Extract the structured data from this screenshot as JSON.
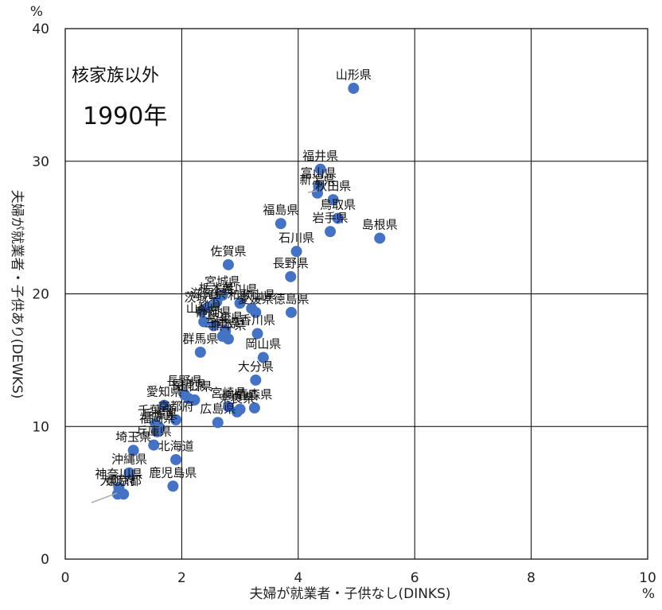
{
  "chart_data": {
    "type": "scatter",
    "title": "核家族以外",
    "subtitle": "1990年",
    "xlabel": "夫婦が就業者・子供なし(DINKS)",
    "ylabel": "夫婦が就業者・子供あり(DEWKS)",
    "x_unit": "%",
    "y_unit": "%",
    "xlim": [
      0,
      10
    ],
    "ylim": [
      0,
      40
    ],
    "x_ticks": [
      "0",
      "2",
      "4",
      "6",
      "8",
      "10"
    ],
    "y_ticks": [
      "0",
      "10",
      "20",
      "30",
      "40"
    ],
    "grid": true,
    "marker_color": "#4472c4",
    "points": [
      {
        "x": 4.95,
        "y": 35.5,
        "label": "山形県"
      },
      {
        "x": 4.38,
        "y": 29.4,
        "label": "福井県"
      },
      {
        "x": 4.35,
        "y": 28.1,
        "label": "富山県"
      },
      {
        "x": 4.33,
        "y": 27.6,
        "label": "新潟県"
      },
      {
        "x": 4.6,
        "y": 27.1,
        "label": "秋田県"
      },
      {
        "x": 4.68,
        "y": 25.7,
        "label": "鳥取県"
      },
      {
        "x": 3.7,
        "y": 25.3,
        "label": "福島県"
      },
      {
        "x": 4.55,
        "y": 24.7,
        "label": "岩手県"
      },
      {
        "x": 5.4,
        "y": 24.2,
        "label": "島根県"
      },
      {
        "x": 3.97,
        "y": 23.2,
        "label": "石川県"
      },
      {
        "x": 2.8,
        "y": 22.2,
        "label": "佐賀県"
      },
      {
        "x": 3.87,
        "y": 21.3,
        "label": "長野県"
      },
      {
        "x": 2.7,
        "y": 19.9,
        "label": "宮城県"
      },
      {
        "x": 2.6,
        "y": 19.4,
        "label": "栃木県"
      },
      {
        "x": 2.45,
        "y": 19.0,
        "label": "滋賀県"
      },
      {
        "x": 2.35,
        "y": 18.7,
        "label": "茨城県"
      },
      {
        "x": 3.0,
        "y": 19.3,
        "label": "香川県"
      },
      {
        "x": 3.2,
        "y": 18.9,
        "label": "和歌山県"
      },
      {
        "x": 3.27,
        "y": 18.6,
        "label": "愛媛県"
      },
      {
        "x": 3.88,
        "y": 18.6,
        "label": "徳島県"
      },
      {
        "x": 2.38,
        "y": 17.9,
        "label": "山梨県"
      },
      {
        "x": 2.55,
        "y": 17.6,
        "label": "静岡県"
      },
      {
        "x": 2.75,
        "y": 17.2,
        "label": "岐阜県"
      },
      {
        "x": 2.7,
        "y": 16.8,
        "label": "三重県"
      },
      {
        "x": 3.3,
        "y": 17.0,
        "label": "香川県"
      },
      {
        "x": 2.8,
        "y": 16.6,
        "label": "熊本県"
      },
      {
        "x": 2.32,
        "y": 15.6,
        "label": "群馬県"
      },
      {
        "x": 3.4,
        "y": 15.2,
        "label": "岡山県"
      },
      {
        "x": 3.27,
        "y": 13.5,
        "label": "大分県"
      },
      {
        "x": 2.05,
        "y": 12.4,
        "label": "長野県"
      },
      {
        "x": 2.12,
        "y": 12.1,
        "label": "長崎県"
      },
      {
        "x": 2.22,
        "y": 12.0,
        "label": "山口県"
      },
      {
        "x": 1.7,
        "y": 11.6,
        "label": "愛知県"
      },
      {
        "x": 2.8,
        "y": 11.5,
        "label": "宮崎県"
      },
      {
        "x": 3.0,
        "y": 11.3,
        "label": "高知県"
      },
      {
        "x": 3.25,
        "y": 11.4,
        "label": "青森県"
      },
      {
        "x": 2.95,
        "y": 11.1,
        "label": "奈良県"
      },
      {
        "x": 2.62,
        "y": 10.3,
        "label": "広島県"
      },
      {
        "x": 1.9,
        "y": 10.5,
        "label": "京都府"
      },
      {
        "x": 1.55,
        "y": 10.2,
        "label": "千葉県"
      },
      {
        "x": 1.62,
        "y": 9.9,
        "label": "兵庫県"
      },
      {
        "x": 1.58,
        "y": 9.6,
        "label": "福岡県"
      },
      {
        "x": 1.52,
        "y": 8.6,
        "label": "兵庫県"
      },
      {
        "x": 1.17,
        "y": 8.2,
        "label": "埼玉県"
      },
      {
        "x": 1.9,
        "y": 7.5,
        "label": "北海道"
      },
      {
        "x": 1.1,
        "y": 6.5,
        "label": "沖縄県"
      },
      {
        "x": 0.92,
        "y": 5.4,
        "label": "神奈川県"
      },
      {
        "x": 1.85,
        "y": 5.5,
        "label": "鹿児島県"
      },
      {
        "x": 1.0,
        "y": 4.9,
        "label": "東京都"
      },
      {
        "x": 0.9,
        "y": 4.9,
        "label": "大阪府"
      }
    ]
  }
}
